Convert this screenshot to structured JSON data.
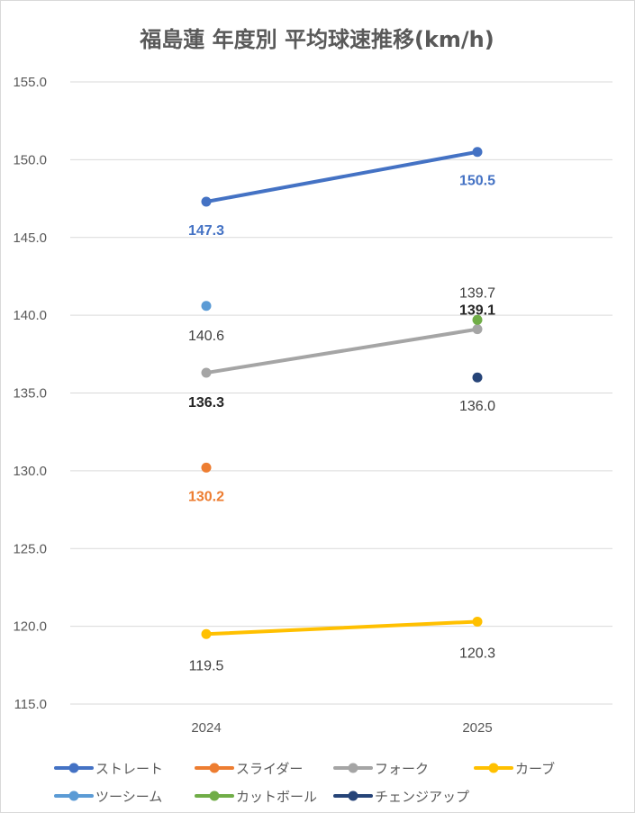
{
  "chart_data": {
    "type": "line",
    "title": "福島蓮 年度別 平均球速推移(km/h)",
    "categories": [
      "2024",
      "2025"
    ],
    "ylim": [
      115,
      155
    ],
    "yticks": [
      "115.0",
      "120.0",
      "125.0",
      "130.0",
      "135.0",
      "140.0",
      "145.0",
      "150.0",
      "155.0"
    ],
    "grid": true,
    "legend": "bottom",
    "series": [
      {
        "name": "ストレート",
        "color": "#4472C4",
        "values": [
          147.3,
          150.5
        ],
        "labels": [
          "147.3",
          "150.5"
        ],
        "label_color": "#4472C4",
        "label_bold": false
      },
      {
        "name": "スライダー",
        "color": "#ED7D31",
        "values": [
          130.2,
          null
        ],
        "labels": [
          "130.2",
          ""
        ],
        "label_color": "#ED7D31",
        "label_bold": false
      },
      {
        "name": "フォーク",
        "color": "#A5A5A5",
        "values": [
          136.3,
          139.1
        ],
        "labels": [
          "136.3",
          "139.1"
        ],
        "label_color": "#262626",
        "label_bold": true
      },
      {
        "name": "カーブ",
        "color": "#FFC000",
        "values": [
          119.5,
          120.3
        ],
        "labels": [
          "119.5",
          "120.3"
        ],
        "label_color": "#404040",
        "label_bold": false
      },
      {
        "name": "ツーシーム",
        "color": "#5B9BD5",
        "values": [
          140.6,
          null
        ],
        "labels": [
          "140.6",
          ""
        ],
        "label_color": "#404040",
        "label_bold": false
      },
      {
        "name": "カットボール",
        "color": "#70AD47",
        "values": [
          null,
          139.7
        ],
        "labels": [
          "",
          "139.7"
        ],
        "label_color": "#404040",
        "label_bold": false
      },
      {
        "name": "チェンジアップ",
        "color": "#264478",
        "values": [
          null,
          136.0
        ],
        "labels": [
          "",
          "136.0"
        ],
        "label_color": "#404040",
        "label_bold": false
      }
    ]
  }
}
